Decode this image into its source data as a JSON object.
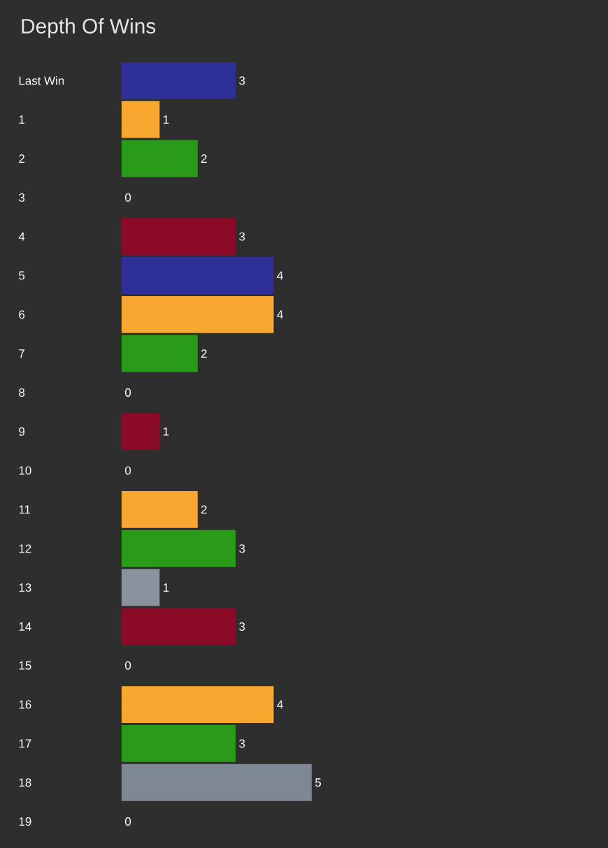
{
  "chart_data": {
    "type": "bar",
    "orientation": "horizontal",
    "title": "Depth Of Wins",
    "data_labels": true,
    "categories": [
      "Last Win",
      "1",
      "2",
      "3",
      "4",
      "5",
      "6",
      "7",
      "8",
      "9",
      "10",
      "11",
      "12",
      "13",
      "14",
      "15",
      "16",
      "17",
      "18",
      "19"
    ],
    "values": [
      3,
      1,
      2,
      0,
      3,
      4,
      4,
      2,
      0,
      1,
      0,
      2,
      3,
      1,
      3,
      0,
      4,
      3,
      5,
      0
    ],
    "colors": [
      "#2f2f98",
      "#f8a830",
      "#2a9a1a",
      null,
      "#8a0a28",
      "#2f2f98",
      "#f8a830",
      "#2a9a1a",
      null,
      "#8a0a28",
      null,
      "#f8a830",
      "#2a9a1a",
      "#8a929e",
      "#8a0a28",
      null,
      "#f8a830",
      "#2a9a1a",
      "#7e8794",
      null
    ]
  }
}
